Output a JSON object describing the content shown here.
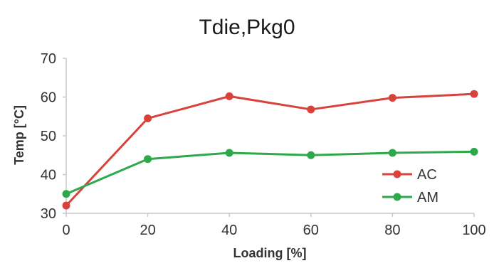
{
  "chart_data": {
    "type": "line",
    "title": "Tdie,Pkg0",
    "xlabel": "Loading [%]",
    "ylabel": "Temp [°C]",
    "x": [
      0,
      20,
      40,
      60,
      80,
      100
    ],
    "xlim": [
      0,
      100
    ],
    "ylim": [
      30,
      70
    ],
    "xticks": [
      "0",
      "20",
      "40",
      "60",
      "80",
      "100"
    ],
    "yticks": [
      "30",
      "40",
      "50",
      "60",
      "70"
    ],
    "grid": false,
    "legend_position": "bottom-right",
    "series": [
      {
        "name": "AC",
        "color": "#d9413b",
        "values": [
          32,
          54.5,
          60.2,
          56.8,
          59.8,
          60.8
        ]
      },
      {
        "name": "AM",
        "color": "#2ea84a",
        "values": [
          35,
          44,
          45.6,
          45,
          45.6,
          45.9
        ]
      }
    ]
  }
}
